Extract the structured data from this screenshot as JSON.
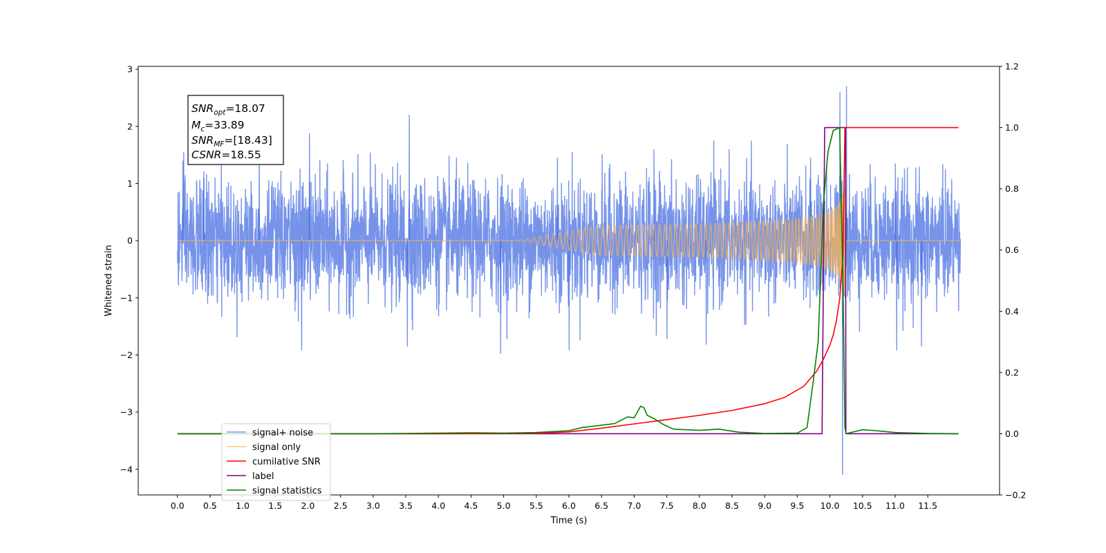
{
  "chart_data": {
    "type": "line",
    "title": "",
    "xlabel": "Time (s)",
    "ylabel": "Whitened strain",
    "xlim": [
      -0.6,
      12.6
    ],
    "ylim": [
      -4.45,
      3.05
    ],
    "y2lim": [
      -0.2,
      1.2
    ],
    "grid": false,
    "legend_position": "lower-left",
    "x_ticks": [
      "0.0",
      "0.5",
      "1.0",
      "1.5",
      "2.0",
      "2.5",
      "3.0",
      "3.5",
      "4.0",
      "4.5",
      "5.0",
      "5.5",
      "6.0",
      "6.5",
      "7.0",
      "7.5",
      "8.0",
      "8.5",
      "9.0",
      "9.5",
      "10.0",
      "10.5",
      "11.0",
      "11.5"
    ],
    "y_ticks": [
      "3",
      "2",
      "1",
      "0",
      "−1",
      "−2",
      "−3",
      "−4"
    ],
    "y2_ticks": [
      "1.2",
      "1.0",
      "0.8",
      "0.6",
      "0.4",
      "0.2",
      "0.0",
      "−0.2"
    ],
    "annotation": {
      "snr_opt_sym": "SNR",
      "snr_opt_sub": "opt",
      "snr_opt_value": "=18.07",
      "mc_sym": "M",
      "mc_sub": "c",
      "mc_value": "=33.89",
      "snr_mf_sym": "SNR",
      "snr_mf_sub": "MF",
      "snr_mf_value": "=[18.43]",
      "csnr_sym": "CSNR",
      "csnr_value": "=18.55"
    },
    "series": [
      {
        "name": "signal+ noise",
        "color": "#4169e1",
        "axis": "left",
        "x_range": [
          0.0,
          12.0
        ],
        "noise_std": 0.52,
        "peaks": [
          [
            0.08,
            1.4
          ],
          [
            0.4,
            1.1
          ],
          [
            1.25,
            1.65
          ],
          [
            1.9,
            -1.92
          ],
          [
            2.02,
            1.88
          ],
          [
            3.52,
            -1.85
          ],
          [
            3.55,
            2.2
          ],
          [
            4.95,
            -1.98
          ],
          [
            5.82,
            1.45
          ],
          [
            6.0,
            -1.92
          ],
          [
            7.3,
            1.6
          ],
          [
            7.5,
            -1.72
          ],
          [
            8.1,
            -1.82
          ],
          [
            9.7,
            1.45
          ],
          [
            10.15,
            2.6
          ],
          [
            10.19,
            -4.1
          ],
          [
            10.25,
            2.7
          ],
          [
            11.0,
            1.35
          ],
          [
            11.02,
            -1.92
          ],
          [
            11.4,
            -1.85
          ]
        ]
      },
      {
        "name": "signal only",
        "color": "#ffb347",
        "axis": "left",
        "chirp": {
          "t_merge": 10.23,
          "t_start": 5.8,
          "amp_end": 1.1
        }
      },
      {
        "name": "cumilative SNR",
        "color": "#ff0000",
        "axis": "right",
        "x": [
          0.0,
          4.0,
          5.5,
          6.0,
          6.5,
          7.0,
          7.5,
          8.0,
          8.5,
          9.0,
          9.3,
          9.6,
          9.8,
          9.9,
          10.0,
          10.05,
          10.1,
          10.15,
          10.2,
          10.23,
          10.24,
          11.97
        ],
        "y": [
          0.0,
          0.0,
          0.0015,
          0.006,
          0.018,
          0.032,
          0.046,
          0.06,
          0.076,
          0.098,
          0.118,
          0.155,
          0.205,
          0.243,
          0.29,
          0.322,
          0.37,
          0.44,
          0.58,
          1.0,
          1.0,
          1.0
        ]
      },
      {
        "name": "label",
        "color": "#800080",
        "axis": "right",
        "x": [
          0.0,
          9.88,
          9.92,
          10.24,
          10.245,
          11.97
        ],
        "y": [
          0.0,
          0.0,
          1.0,
          1.0,
          0.0,
          0.0
        ]
      },
      {
        "name": "signal statistics",
        "color": "#008000",
        "axis": "right",
        "x": [
          0.0,
          3.0,
          3.5,
          4.0,
          4.5,
          5.0,
          5.5,
          6.0,
          6.2,
          6.5,
          6.7,
          6.9,
          7.0,
          7.1,
          7.15,
          7.2,
          7.3,
          7.45,
          7.6,
          7.8,
          8.0,
          8.3,
          8.6,
          9.0,
          9.5,
          9.65,
          9.75,
          9.82,
          9.9,
          9.97,
          10.05,
          10.15,
          10.2,
          10.23,
          10.25,
          10.3,
          10.5,
          10.7,
          11.0,
          11.5,
          11.97
        ],
        "y": [
          0.0,
          0.0,
          0.001,
          0.002,
          0.003,
          0.002,
          0.004,
          0.01,
          0.02,
          0.028,
          0.033,
          0.055,
          0.052,
          0.09,
          0.085,
          0.06,
          0.05,
          0.03,
          0.015,
          0.013,
          0.011,
          0.015,
          0.005,
          0.001,
          0.002,
          0.02,
          0.18,
          0.3,
          0.75,
          0.92,
          0.99,
          1.0,
          0.5,
          0.02,
          0.0,
          0.003,
          0.013,
          0.01,
          0.004,
          0.001,
          0.0
        ]
      }
    ]
  }
}
